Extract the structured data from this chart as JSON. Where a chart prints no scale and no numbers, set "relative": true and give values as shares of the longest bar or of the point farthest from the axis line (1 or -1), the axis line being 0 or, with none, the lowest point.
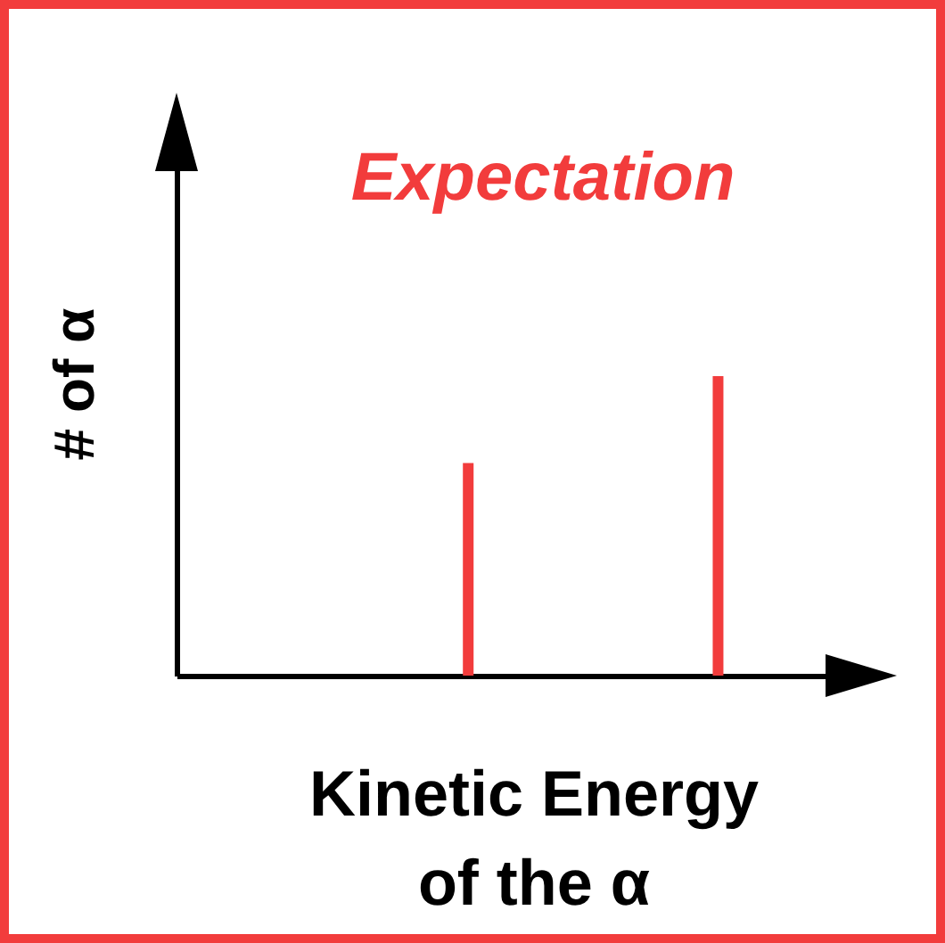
{
  "chart_data": {
    "type": "bar",
    "title": "Expectation",
    "xlabel": "Kinetic Energy\nof the α",
    "ylabel": "# of α",
    "categories": [
      null,
      null
    ],
    "series": [
      {
        "color": "#f23c3c",
        "values": [
          0.71,
          1
        ]
      }
    ],
    "relative": true
  }
}
